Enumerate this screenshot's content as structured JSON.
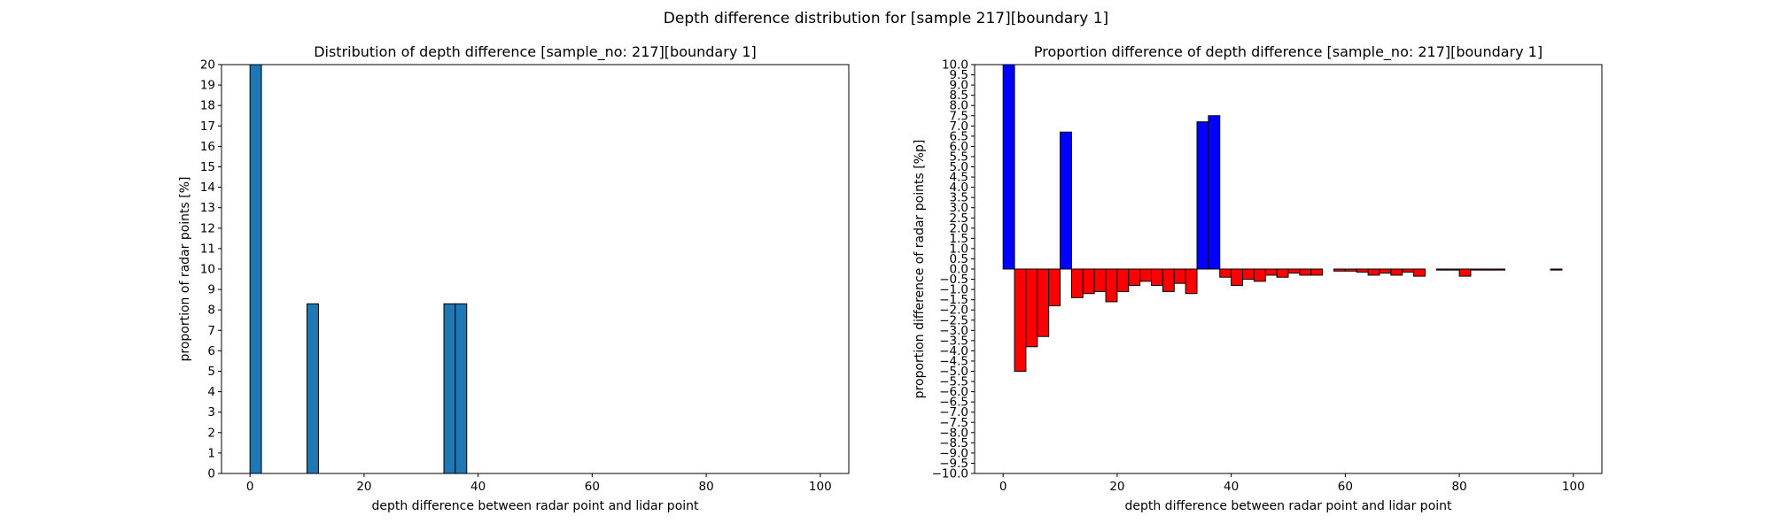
{
  "figure": {
    "suptitle": "Depth difference distribution for [sample 217][boundary 1]"
  },
  "chart_data": [
    {
      "type": "bar",
      "title": "Distribution of depth difference [sample_no: 217][boundary 1]",
      "xlabel": "depth difference between radar point and lidar point",
      "ylabel": "proportion of radar points [%]",
      "xlim": [
        -5,
        105
      ],
      "ylim": [
        0,
        20
      ],
      "xticks": [
        0,
        20,
        40,
        60,
        80,
        100
      ],
      "yticks": [
        0,
        1,
        2,
        3,
        4,
        5,
        6,
        7,
        8,
        9,
        10,
        11,
        12,
        13,
        14,
        15,
        16,
        17,
        18,
        19,
        20
      ],
      "bin_width": 2,
      "bar_color": "#1f77b4",
      "grid": false,
      "bins_start": [
        0,
        10,
        34,
        36
      ],
      "values": [
        20.0,
        8.3,
        8.3,
        8.3
      ]
    },
    {
      "type": "bar",
      "title": "Proportion difference of depth difference [sample_no: 217][boundary 1]",
      "xlabel": "depth difference between radar point and lidar point",
      "ylabel": "proportion difference of radar points [%p]",
      "xlim": [
        -5,
        105
      ],
      "ylim": [
        -10,
        10
      ],
      "xticks": [
        0,
        20,
        40,
        60,
        80,
        100
      ],
      "yticks": [
        -10.0,
        -9.5,
        -9.0,
        -8.5,
        -8.0,
        -7.5,
        -7.0,
        -6.5,
        -6.0,
        -5.5,
        -5.0,
        -4.5,
        -4.0,
        -3.5,
        -3.0,
        -2.5,
        -2.0,
        -1.5,
        -1.0,
        -0.5,
        0.0,
        0.5,
        1.0,
        1.5,
        2.0,
        2.5,
        3.0,
        3.5,
        4.0,
        4.5,
        5.0,
        5.5,
        6.0,
        6.5,
        7.0,
        7.5,
        8.0,
        8.5,
        9.0,
        9.5,
        10.0
      ],
      "bin_width": 2,
      "positive_color": "#0000ff",
      "negative_color": "#ff0000",
      "grid": false,
      "bins_start": [
        0,
        2,
        4,
        6,
        8,
        10,
        12,
        14,
        16,
        18,
        20,
        22,
        24,
        26,
        28,
        30,
        32,
        34,
        36,
        38,
        40,
        42,
        44,
        46,
        48,
        50,
        52,
        54,
        56,
        58,
        60,
        62,
        64,
        66,
        68,
        70,
        72,
        74,
        76,
        78,
        80,
        82,
        84,
        86,
        88,
        90,
        92,
        94,
        96,
        98
      ],
      "values": [
        10.0,
        -5.0,
        -3.8,
        -3.3,
        -1.8,
        6.7,
        -1.4,
        -1.2,
        -1.1,
        -1.6,
        -1.1,
        -0.8,
        -0.6,
        -0.8,
        -1.1,
        -0.7,
        -1.2,
        7.2,
        7.5,
        -0.4,
        -0.8,
        -0.5,
        -0.6,
        -0.3,
        -0.4,
        -0.2,
        -0.3,
        -0.3,
        0.0,
        -0.1,
        -0.1,
        -0.15,
        -0.3,
        -0.2,
        -0.3,
        -0.15,
        -0.35,
        0.0,
        -0.05,
        -0.05,
        -0.35,
        -0.05,
        -0.05,
        -0.05,
        0.0,
        0.0,
        0.0,
        0.0,
        -0.05,
        0.0
      ]
    }
  ]
}
